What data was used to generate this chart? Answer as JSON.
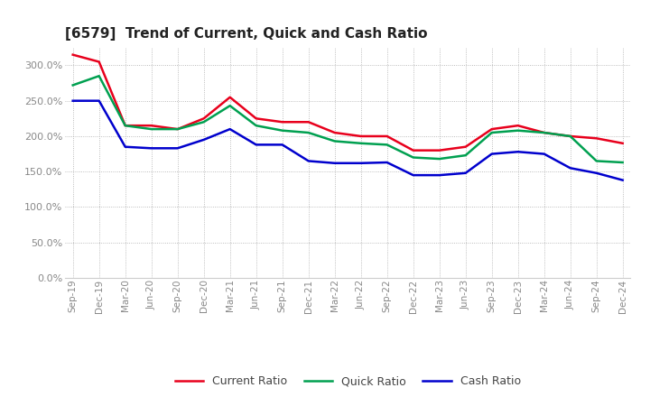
{
  "title": "[6579]  Trend of Current, Quick and Cash Ratio",
  "x_labels": [
    "Sep-19",
    "Dec-19",
    "Mar-20",
    "Jun-20",
    "Sep-20",
    "Dec-20",
    "Mar-21",
    "Jun-21",
    "Sep-21",
    "Dec-21",
    "Mar-22",
    "Jun-22",
    "Sep-22",
    "Dec-22",
    "Mar-23",
    "Jun-23",
    "Sep-23",
    "Dec-23",
    "Mar-24",
    "Jun-24",
    "Sep-24",
    "Dec-24"
  ],
  "current_ratio": [
    315,
    305,
    215,
    215,
    210,
    225,
    255,
    225,
    220,
    220,
    205,
    200,
    200,
    180,
    180,
    185,
    210,
    215,
    205,
    200,
    197,
    190
  ],
  "quick_ratio": [
    272,
    285,
    215,
    210,
    210,
    220,
    243,
    215,
    208,
    205,
    193,
    190,
    188,
    170,
    168,
    173,
    205,
    208,
    205,
    200,
    165,
    163
  ],
  "cash_ratio": [
    250,
    250,
    185,
    183,
    183,
    195,
    210,
    188,
    188,
    165,
    162,
    162,
    163,
    145,
    145,
    148,
    175,
    178,
    175,
    155,
    148,
    138
  ],
  "current_color": "#e8001c",
  "quick_color": "#00a050",
  "cash_color": "#0000cd",
  "ylim": [
    0,
    325
  ],
  "yticks": [
    0,
    50,
    100,
    150,
    200,
    250,
    300
  ],
  "background_color": "#ffffff",
  "grid_color": "#aaaaaa",
  "legend_labels": [
    "Current Ratio",
    "Quick Ratio",
    "Cash Ratio"
  ],
  "tick_label_color": "#888888",
  "title_color": "#222222"
}
